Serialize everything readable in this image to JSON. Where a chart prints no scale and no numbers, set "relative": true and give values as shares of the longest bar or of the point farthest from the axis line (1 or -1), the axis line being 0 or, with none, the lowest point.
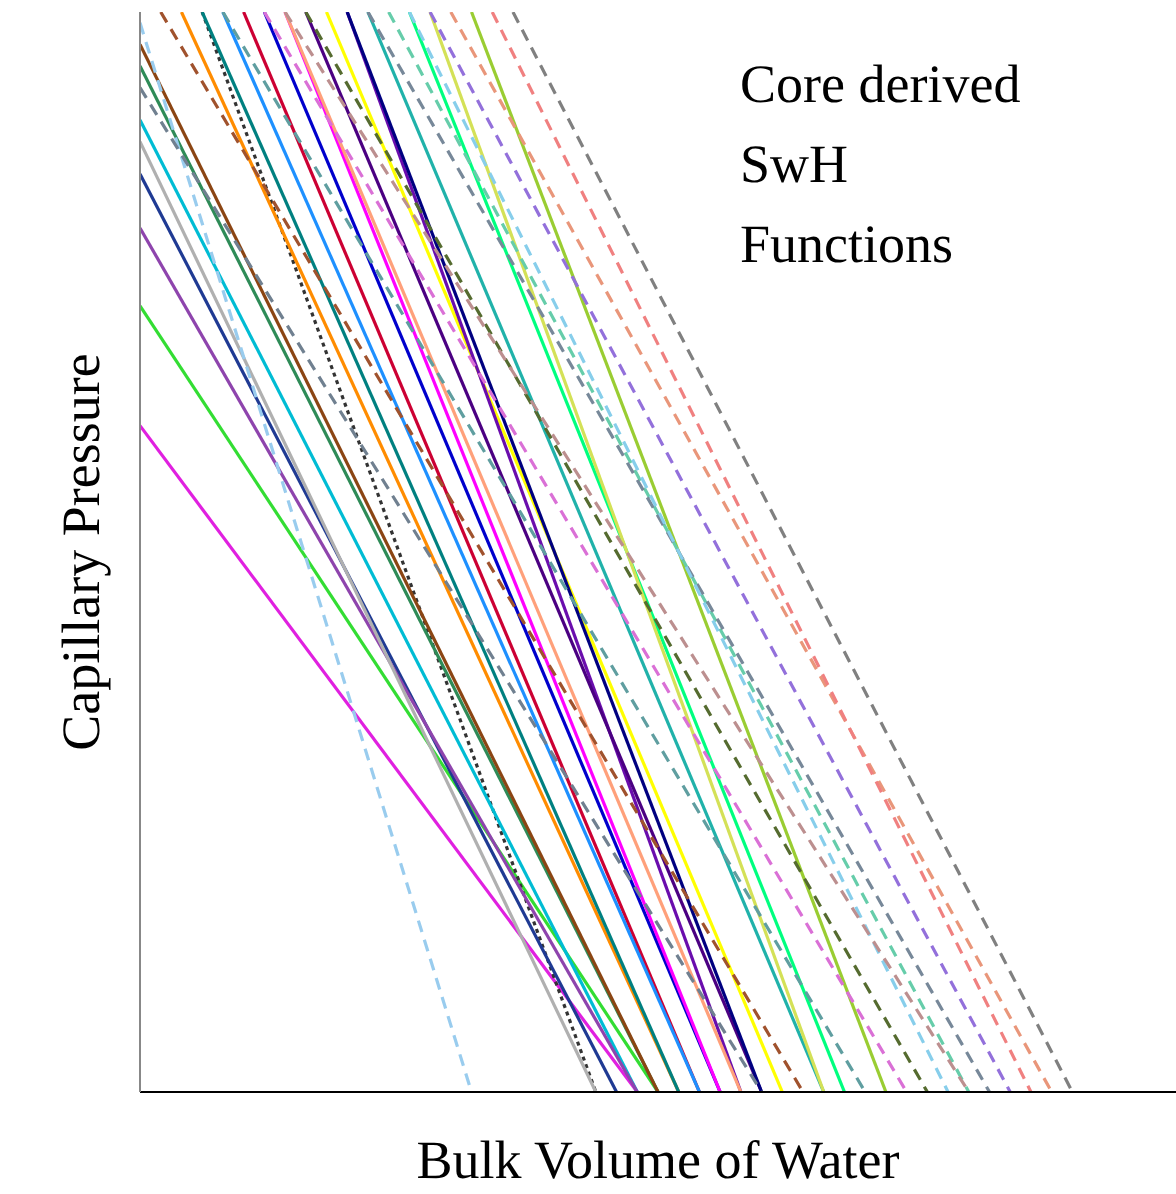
{
  "chart_data": {
    "type": "line",
    "relative": true,
    "xlabel": "Bulk Volume of Water",
    "ylabel": "Capillary Pressure",
    "annotations": [
      "Core derived",
      "SwH",
      "Functions"
    ],
    "marker": "none",
    "categories": [
      null,
      null,
      null,
      null,
      null,
      null,
      null,
      null,
      null,
      null,
      null,
      null,
      null,
      null,
      null,
      null,
      null,
      null,
      null,
      null,
      null,
      null,
      null,
      null,
      null,
      null,
      null,
      null,
      null,
      null,
      null,
      null,
      null,
      null,
      null,
      null,
      null,
      null,
      null,
      null,
      null,
      null,
      null,
      null,
      null,
      null,
      null,
      null,
      null,
      null,
      null
    ],
    "series": [
      {
        "color": "#e020e0",
        "values": [
          0.617,
          null,
          null,
          null,
          null,
          null,
          null,
          null,
          null,
          null,
          null,
          null,
          null,
          null,
          null,
          null,
          null,
          null,
          null,
          null,
          null,
          null,
          null,
          null,
          0,
          null,
          null,
          null,
          null,
          null,
          null,
          null,
          null,
          null,
          null,
          null,
          null,
          null,
          null,
          null,
          null,
          null,
          null,
          null,
          null,
          null,
          null,
          null,
          null,
          null,
          null
        ]
      },
      {
        "color": "#33dd33",
        "values": [
          0.728,
          null,
          null,
          null,
          null,
          null,
          null,
          null,
          null,
          null,
          null,
          null,
          null,
          null,
          null,
          null,
          null,
          null,
          null,
          null,
          null,
          null,
          null,
          null,
          null,
          0,
          null,
          null,
          null,
          null,
          null,
          null,
          null,
          null,
          null,
          null,
          null,
          null,
          null,
          null,
          null,
          null,
          null,
          null,
          null,
          null,
          null,
          null,
          null,
          null,
          null
        ]
      },
      {
        "color": "#333333",
        "line_style": "dotted",
        "values": [
          null,
          null,
          null,
          1,
          null,
          null,
          null,
          null,
          null,
          null,
          null,
          null,
          null,
          null,
          null,
          null,
          null,
          null,
          null,
          null,
          null,
          null,
          0,
          null,
          null,
          null,
          null,
          null,
          null,
          null,
          null,
          null,
          null,
          null,
          null,
          null,
          null,
          null,
          null,
          null,
          null,
          null,
          null,
          null,
          null,
          null,
          null,
          null,
          null,
          null,
          null
        ]
      },
      {
        "color": "#1f3a93",
        "values": [
          0.85,
          null,
          null,
          null,
          null,
          null,
          null,
          null,
          null,
          null,
          null,
          null,
          null,
          null,
          null,
          null,
          null,
          null,
          null,
          null,
          null,
          null,
          null,
          0,
          null,
          null,
          null,
          null,
          null,
          null,
          null,
          null,
          null,
          null,
          null,
          null,
          null,
          null,
          null,
          null,
          null,
          null,
          null,
          null,
          null,
          null,
          null,
          null,
          null,
          null,
          null
        ]
      },
      {
        "color": "#00bcd4",
        "values": [
          0.9,
          null,
          null,
          null,
          null,
          null,
          null,
          null,
          null,
          null,
          null,
          null,
          null,
          null,
          null,
          null,
          null,
          null,
          null,
          null,
          null,
          null,
          null,
          null,
          0,
          null,
          null,
          null,
          null,
          null,
          null,
          null,
          null,
          null,
          null,
          null,
          null,
          null,
          null,
          null,
          null,
          null,
          null,
          null,
          null,
          null,
          null,
          null,
          null,
          null,
          null
        ]
      },
      {
        "color": "#8e44ad",
        "values": [
          0.8,
          null,
          null,
          null,
          null,
          null,
          null,
          null,
          null,
          null,
          null,
          null,
          null,
          null,
          null,
          null,
          null,
          null,
          null,
          null,
          null,
          null,
          null,
          null,
          0,
          null,
          null,
          null,
          null,
          null,
          null,
          null,
          null,
          null,
          null,
          null,
          null,
          null,
          null,
          null,
          null,
          null,
          null,
          null,
          null,
          null,
          null,
          null,
          null,
          null,
          null
        ]
      },
      {
        "color": "#2e8b57",
        "values": [
          0.95,
          null,
          null,
          null,
          null,
          null,
          null,
          null,
          null,
          null,
          null,
          null,
          null,
          null,
          null,
          null,
          null,
          null,
          null,
          null,
          null,
          null,
          null,
          null,
          null,
          0,
          null,
          null,
          null,
          null,
          null,
          null,
          null,
          null,
          null,
          null,
          null,
          null,
          null,
          null,
          null,
          null,
          null,
          null,
          null,
          null,
          null,
          null,
          null,
          null,
          null
        ]
      },
      {
        "color": "#ff8c00",
        "values": [
          null,
          null,
          1,
          null,
          null,
          null,
          null,
          null,
          null,
          null,
          null,
          null,
          null,
          null,
          null,
          null,
          null,
          null,
          null,
          null,
          null,
          null,
          null,
          null,
          null,
          null,
          0,
          null,
          null,
          null,
          null,
          null,
          null,
          null,
          null,
          null,
          null,
          null,
          null,
          null,
          null,
          null,
          null,
          null,
          null,
          null,
          null,
          null,
          null,
          null,
          null
        ]
      },
      {
        "color": "#0000cc",
        "values": [
          null,
          null,
          null,
          null,
          null,
          null,
          1,
          null,
          null,
          null,
          null,
          null,
          null,
          null,
          null,
          null,
          null,
          null,
          null,
          null,
          null,
          null,
          null,
          null,
          null,
          null,
          null,
          null,
          0,
          null,
          null,
          null,
          null,
          null,
          null,
          null,
          null,
          null,
          null,
          null,
          null,
          null,
          null,
          null,
          null,
          null,
          null,
          null,
          null,
          null,
          null
        ]
      },
      {
        "color": "#cc0033",
        "values": [
          null,
          null,
          null,
          null,
          null,
          1,
          null,
          null,
          null,
          null,
          null,
          null,
          null,
          null,
          null,
          null,
          null,
          null,
          null,
          null,
          null,
          null,
          null,
          null,
          null,
          null,
          null,
          0,
          null,
          null,
          null,
          null,
          null,
          null,
          null,
          null,
          null,
          null,
          null,
          null,
          null,
          null,
          null,
          null,
          null,
          null,
          null,
          null,
          null,
          null,
          null
        ]
      },
      {
        "color": "#ff00ff",
        "values": [
          null,
          null,
          null,
          null,
          null,
          null,
          null,
          1,
          null,
          null,
          null,
          null,
          null,
          null,
          null,
          null,
          null,
          null,
          null,
          null,
          null,
          null,
          null,
          null,
          null,
          null,
          null,
          null,
          0,
          null,
          null,
          null,
          null,
          null,
          null,
          null,
          null,
          null,
          null,
          null,
          null,
          null,
          null,
          null,
          null,
          null,
          null,
          null,
          null,
          null,
          null
        ]
      },
      {
        "color": "#008080",
        "values": [
          null,
          null,
          null,
          1,
          null,
          null,
          null,
          null,
          null,
          null,
          null,
          null,
          null,
          null,
          null,
          null,
          null,
          null,
          null,
          null,
          null,
          null,
          null,
          null,
          null,
          null,
          0,
          null,
          null,
          null,
          null,
          null,
          null,
          null,
          null,
          null,
          null,
          null,
          null,
          null,
          null,
          null,
          null,
          null,
          null,
          null,
          null,
          null,
          null,
          null,
          null
        ]
      },
      {
        "color": "#ffff00",
        "values": [
          null,
          null,
          null,
          null,
          null,
          null,
          null,
          null,
          null,
          1,
          null,
          null,
          null,
          null,
          null,
          null,
          null,
          null,
          null,
          null,
          null,
          null,
          null,
          null,
          null,
          null,
          null,
          null,
          null,
          null,
          null,
          0,
          null,
          null,
          null,
          null,
          null,
          null,
          null,
          null,
          null,
          null,
          null,
          null,
          null,
          null,
          null,
          null,
          null,
          null,
          null
        ]
      },
      {
        "color": "#6a0dad",
        "values": [
          null,
          null,
          null,
          null,
          null,
          null,
          null,
          null,
          null,
          null,
          1,
          null,
          null,
          null,
          null,
          null,
          null,
          null,
          null,
          null,
          null,
          null,
          null,
          null,
          null,
          null,
          null,
          null,
          null,
          0,
          null,
          null,
          null,
          null,
          null,
          null,
          null,
          null,
          null,
          null,
          null,
          null,
          null,
          null,
          null,
          null,
          null,
          null,
          null,
          null,
          null
        ]
      },
      {
        "color": "#1e90ff",
        "values": [
          null,
          null,
          null,
          null,
          1,
          null,
          null,
          null,
          null,
          null,
          null,
          null,
          null,
          null,
          null,
          null,
          null,
          null,
          null,
          null,
          null,
          null,
          null,
          null,
          null,
          null,
          null,
          0,
          null,
          null,
          null,
          null,
          null,
          null,
          null,
          null,
          null,
          null,
          null,
          null,
          null,
          null,
          null,
          null,
          null,
          null,
          null,
          null,
          null,
          null,
          null
        ]
      },
      {
        "color": "#8b4513",
        "values": [
          0.97,
          null,
          null,
          null,
          null,
          null,
          null,
          null,
          null,
          null,
          null,
          null,
          null,
          null,
          null,
          null,
          null,
          null,
          null,
          null,
          null,
          null,
          null,
          null,
          null,
          0,
          null,
          null,
          null,
          null,
          null,
          null,
          null,
          null,
          null,
          null,
          null,
          null,
          null,
          null,
          null,
          null,
          null,
          null,
          null,
          null,
          null,
          null,
          null,
          null,
          null
        ]
      },
      {
        "color": "#9acd32",
        "values": [
          null,
          null,
          null,
          null,
          null,
          null,
          null,
          null,
          null,
          null,
          null,
          null,
          null,
          null,
          null,
          null,
          1,
          null,
          null,
          null,
          null,
          null,
          null,
          null,
          null,
          null,
          null,
          null,
          null,
          null,
          null,
          null,
          null,
          null,
          null,
          null,
          0,
          null,
          null,
          null,
          null,
          null,
          null,
          null,
          null,
          null,
          null,
          null,
          null,
          null,
          null
        ]
      },
      {
        "color": "#20b2aa",
        "values": [
          null,
          null,
          null,
          null,
          null,
          null,
          null,
          null,
          null,
          null,
          null,
          1,
          null,
          null,
          null,
          null,
          null,
          null,
          null,
          null,
          null,
          null,
          null,
          null,
          null,
          null,
          null,
          null,
          null,
          null,
          null,
          null,
          null,
          0,
          null,
          null,
          null,
          null,
          null,
          null,
          null,
          null,
          null,
          null,
          null,
          null,
          null,
          null,
          null,
          null,
          null
        ]
      },
      {
        "color": "#4b0082",
        "values": [
          null,
          null,
          null,
          null,
          null,
          null,
          null,
          null,
          1,
          null,
          null,
          null,
          null,
          null,
          null,
          null,
          null,
          null,
          null,
          null,
          null,
          null,
          null,
          null,
          null,
          null,
          null,
          null,
          null,
          null,
          0,
          null,
          null,
          null,
          null,
          null,
          null,
          null,
          null,
          null,
          null,
          null,
          null,
          null,
          null,
          null,
          null,
          null,
          null,
          null,
          null
        ]
      },
      {
        "color": "#00ff7f",
        "values": [
          null,
          null,
          null,
          null,
          null,
          null,
          null,
          null,
          null,
          null,
          null,
          null,
          null,
          1,
          null,
          null,
          null,
          null,
          null,
          null,
          null,
          null,
          null,
          null,
          null,
          null,
          null,
          null,
          null,
          null,
          null,
          null,
          null,
          null,
          0,
          null,
          null,
          null,
          null,
          null,
          null,
          null,
          null,
          null,
          null,
          null,
          null,
          null,
          null,
          null,
          null
        ]
      },
      {
        "color": "#ffa07a",
        "values": [
          null,
          null,
          null,
          null,
          null,
          null,
          null,
          1,
          null,
          null,
          null,
          null,
          null,
          null,
          null,
          null,
          null,
          null,
          null,
          null,
          null,
          null,
          null,
          null,
          null,
          null,
          null,
          null,
          null,
          0,
          null,
          null,
          null,
          null,
          null,
          null,
          null,
          null,
          null,
          null,
          null,
          null,
          null,
          null,
          null,
          null,
          null,
          null,
          null,
          null,
          null
        ]
      },
      {
        "color": "#000080",
        "values": [
          null,
          null,
          null,
          null,
          null,
          null,
          null,
          null,
          null,
          null,
          1,
          null,
          null,
          null,
          null,
          null,
          null,
          null,
          null,
          null,
          null,
          null,
          null,
          null,
          null,
          null,
          null,
          null,
          null,
          null,
          0,
          null,
          null,
          null,
          null,
          null,
          null,
          null,
          null,
          null,
          null,
          null,
          null,
          null,
          null,
          null,
          null,
          null,
          null,
          null,
          null
        ]
      },
      {
        "color": "#b0b0b0",
        "values": [
          0.88,
          null,
          null,
          null,
          null,
          null,
          null,
          null,
          null,
          null,
          null,
          null,
          null,
          null,
          null,
          null,
          null,
          null,
          null,
          null,
          null,
          null,
          0,
          null,
          null,
          null,
          null,
          null,
          null,
          null,
          null,
          null,
          null,
          null,
          null,
          null,
          null,
          null,
          null,
          null,
          null,
          null,
          null,
          null,
          null,
          null,
          null,
          null,
          null,
          null,
          null
        ]
      },
      {
        "color": "#d4e157",
        "values": [
          null,
          null,
          null,
          null,
          null,
          null,
          null,
          null,
          null,
          null,
          null,
          null,
          null,
          null,
          1,
          null,
          null,
          null,
          null,
          null,
          null,
          null,
          null,
          null,
          null,
          null,
          null,
          null,
          null,
          null,
          null,
          null,
          null,
          0,
          null,
          null,
          null,
          null,
          null,
          null,
          null,
          null,
          null,
          null,
          null,
          null,
          null,
          null,
          null,
          null,
          null
        ]
      },
      {
        "color": "#99ccee",
        "line_style": "dashed",
        "values": [
          0.99,
          null,
          null,
          null,
          null,
          null,
          null,
          null,
          null,
          null,
          null,
          null,
          null,
          null,
          null,
          null,
          0,
          null,
          null,
          null,
          null,
          null,
          null,
          null,
          null,
          null,
          null,
          null,
          null,
          null,
          null,
          null,
          null,
          null,
          null,
          null,
          null,
          null,
          null,
          null,
          null,
          null,
          null,
          null,
          null,
          null,
          null,
          null,
          null,
          null,
          null
        ]
      },
      {
        "color": "#808080",
        "line_style": "dashed",
        "values": [
          null,
          null,
          null,
          null,
          null,
          null,
          null,
          null,
          null,
          null,
          null,
          null,
          null,
          null,
          null,
          null,
          null,
          null,
          1,
          null,
          null,
          null,
          null,
          null,
          null,
          null,
          null,
          null,
          null,
          null,
          null,
          null,
          null,
          null,
          null,
          null,
          null,
          null,
          null,
          null,
          null,
          null,
          null,
          null,
          null,
          0,
          null,
          null,
          null,
          null,
          null
        ]
      },
      {
        "color": "#e9967a",
        "line_style": "dashed",
        "values": [
          null,
          null,
          null,
          null,
          null,
          null,
          null,
          null,
          null,
          null,
          null,
          null,
          null,
          null,
          null,
          1,
          null,
          null,
          null,
          null,
          null,
          null,
          null,
          null,
          null,
          null,
          null,
          null,
          null,
          null,
          null,
          null,
          null,
          null,
          null,
          null,
          null,
          null,
          null,
          null,
          null,
          null,
          null,
          null,
          0,
          null,
          null,
          null,
          null,
          null,
          null
        ]
      },
      {
        "color": "#9370db",
        "line_style": "dashed",
        "values": [
          null,
          null,
          null,
          null,
          null,
          null,
          null,
          null,
          null,
          null,
          null,
          null,
          null,
          null,
          1,
          null,
          null,
          null,
          null,
          null,
          null,
          null,
          null,
          null,
          null,
          null,
          null,
          null,
          null,
          null,
          null,
          null,
          null,
          null,
          null,
          null,
          null,
          null,
          null,
          null,
          null,
          null,
          0,
          null,
          null,
          null,
          null,
          null,
          null,
          null,
          null
        ]
      },
      {
        "color": "#66cdaa",
        "line_style": "dashed",
        "values": [
          null,
          null,
          null,
          null,
          null,
          null,
          null,
          null,
          null,
          null,
          null,
          null,
          1,
          null,
          null,
          null,
          null,
          null,
          null,
          null,
          null,
          null,
          null,
          null,
          null,
          null,
          null,
          null,
          null,
          null,
          null,
          null,
          null,
          null,
          null,
          null,
          null,
          null,
          null,
          null,
          0,
          null,
          null,
          null,
          null,
          null,
          null,
          null,
          null,
          null,
          null
        ]
      },
      {
        "color": "#778899",
        "line_style": "dashed",
        "values": [
          null,
          null,
          null,
          null,
          null,
          null,
          null,
          null,
          null,
          null,
          null,
          1,
          null,
          null,
          null,
          null,
          null,
          null,
          null,
          null,
          null,
          null,
          null,
          null,
          null,
          null,
          null,
          null,
          null,
          null,
          null,
          null,
          null,
          null,
          null,
          null,
          null,
          null,
          null,
          null,
          null,
          0,
          null,
          null,
          null,
          null,
          null,
          null,
          null,
          null,
          null
        ]
      },
      {
        "color": "#f08080",
        "line_style": "dashed",
        "values": [
          null,
          null,
          null,
          null,
          null,
          null,
          null,
          null,
          null,
          null,
          null,
          null,
          null,
          null,
          null,
          null,
          null,
          1,
          null,
          null,
          null,
          null,
          null,
          null,
          null,
          null,
          null,
          null,
          null,
          null,
          null,
          null,
          null,
          null,
          null,
          null,
          null,
          null,
          null,
          null,
          null,
          null,
          null,
          0,
          null,
          null,
          null,
          null,
          null,
          null,
          null
        ]
      },
      {
        "color": "#87ceeb",
        "line_style": "dashed",
        "values": [
          null,
          null,
          null,
          null,
          null,
          null,
          null,
          null,
          null,
          null,
          null,
          null,
          null,
          1,
          null,
          null,
          null,
          null,
          null,
          null,
          null,
          null,
          null,
          null,
          null,
          null,
          null,
          null,
          null,
          null,
          null,
          null,
          null,
          null,
          null,
          null,
          null,
          null,
          null,
          0,
          null,
          null,
          null,
          null,
          null,
          null,
          null,
          null,
          null,
          null,
          null
        ]
      },
      {
        "color": "#556b2f",
        "line_style": "dashed",
        "values": [
          null,
          null,
          null,
          null,
          null,
          null,
          null,
          null,
          1,
          null,
          null,
          null,
          null,
          null,
          null,
          null,
          null,
          null,
          null,
          null,
          null,
          null,
          null,
          null,
          null,
          null,
          null,
          null,
          null,
          null,
          null,
          null,
          null,
          null,
          null,
          null,
          null,
          null,
          0,
          null,
          null,
          null,
          null,
          null,
          null,
          null,
          null,
          null,
          null,
          null,
          null
        ]
      },
      {
        "color": "#da70d6",
        "line_style": "dashed",
        "values": [
          null,
          null,
          null,
          null,
          null,
          null,
          1,
          null,
          null,
          null,
          null,
          null,
          null,
          null,
          null,
          null,
          null,
          null,
          null,
          null,
          null,
          null,
          null,
          null,
          null,
          null,
          null,
          null,
          null,
          null,
          null,
          null,
          null,
          null,
          null,
          null,
          null,
          0,
          null,
          null,
          null,
          null,
          null,
          null,
          null,
          null,
          null,
          null,
          null,
          null,
          null
        ]
      },
      {
        "color": "#5f9ea0",
        "line_style": "dashed",
        "values": [
          null,
          null,
          null,
          null,
          1,
          null,
          null,
          null,
          null,
          null,
          null,
          null,
          null,
          null,
          null,
          null,
          null,
          null,
          null,
          null,
          null,
          null,
          null,
          null,
          null,
          null,
          null,
          null,
          null,
          null,
          null,
          null,
          null,
          null,
          null,
          0,
          null,
          null,
          null,
          null,
          null,
          null,
          null,
          null,
          null,
          null,
          null,
          null,
          null,
          null,
          null
        ]
      },
      {
        "color": "#a0522d",
        "line_style": "dashed",
        "values": [
          null,
          1,
          null,
          null,
          null,
          null,
          null,
          null,
          null,
          null,
          null,
          null,
          null,
          null,
          null,
          null,
          null,
          null,
          null,
          null,
          null,
          null,
          null,
          null,
          null,
          null,
          null,
          null,
          null,
          null,
          null,
          null,
          0,
          null,
          null,
          null,
          null,
          null,
          null,
          null,
          null,
          null,
          null,
          null,
          null,
          null,
          null,
          null,
          null,
          null,
          null
        ]
      },
      {
        "color": "#708090",
        "line_style": "dashed",
        "values": [
          0.93,
          null,
          null,
          null,
          null,
          null,
          null,
          null,
          null,
          null,
          null,
          null,
          null,
          null,
          null,
          null,
          null,
          null,
          null,
          null,
          null,
          null,
          null,
          null,
          null,
          null,
          null,
          null,
          null,
          null,
          0,
          null,
          null,
          null,
          null,
          null,
          null,
          null,
          null,
          null,
          null,
          null,
          null,
          null,
          null,
          null,
          null,
          null,
          null,
          null,
          null
        ]
      },
      {
        "color": "#bc8f8f",
        "line_style": "dashed",
        "values": [
          null,
          null,
          null,
          null,
          null,
          null,
          null,
          1,
          null,
          null,
          null,
          null,
          null,
          null,
          null,
          null,
          null,
          null,
          null,
          null,
          null,
          null,
          null,
          null,
          null,
          null,
          null,
          null,
          null,
          null,
          null,
          null,
          null,
          null,
          null,
          null,
          null,
          null,
          null,
          null,
          0,
          null,
          null,
          null,
          null,
          null,
          null,
          null,
          null,
          null,
          null
        ]
      }
    ]
  }
}
